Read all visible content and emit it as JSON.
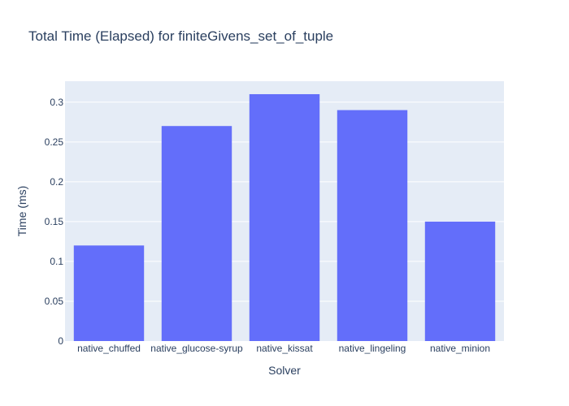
{
  "chart_data": {
    "type": "bar",
    "title": "Total Time (Elapsed) for finiteGivens_set_of_tuple",
    "xlabel": "Solver",
    "ylabel": "Time (ms)",
    "categories": [
      "native_chuffed",
      "native_glucose-syrup",
      "native_kissat",
      "native_lingeling",
      "native_minion"
    ],
    "values": [
      0.12,
      0.27,
      0.31,
      0.29,
      0.15
    ],
    "ylim": [
      0,
      0.3263
    ],
    "yticks": [
      0,
      0.05,
      0.1,
      0.15,
      0.2,
      0.25,
      0.3
    ],
    "ytick_labels": [
      "0",
      "0.05",
      "0.1",
      "0.15",
      "0.2",
      "0.25",
      "0.3"
    ],
    "grid": true,
    "legend": false,
    "colors": {
      "bar": "#636efa",
      "plot_background": "#e5ecf6",
      "text": "#2a3f5f",
      "grid": "#ffffff"
    }
  }
}
